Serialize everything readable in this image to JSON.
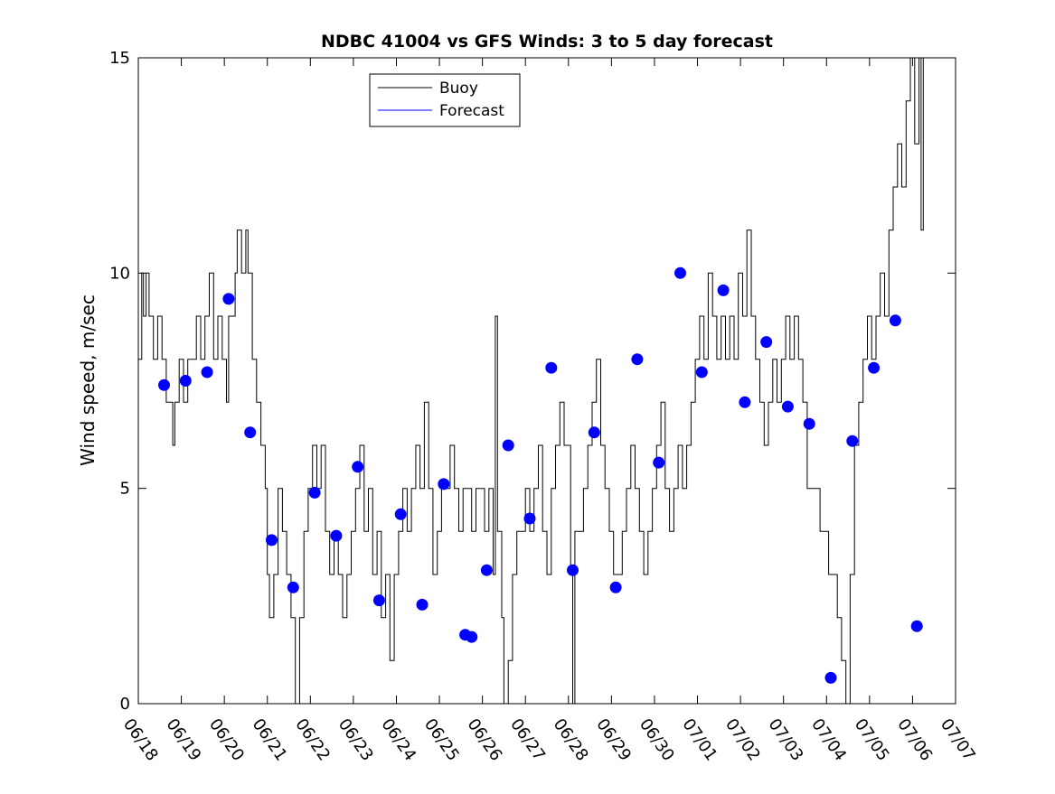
{
  "chart_data": {
    "type": "line",
    "title": "NDBC 41004 vs GFS Winds: 3 to 5 day forecast",
    "xlabel": "",
    "ylabel": "Wind speed, m/sec",
    "x_ticks": [
      "06/18",
      "06/19",
      "06/20",
      "06/21",
      "06/22",
      "06/23",
      "06/24",
      "06/25",
      "06/26",
      "06/27",
      "06/28",
      "06/29",
      "06/30",
      "07/01",
      "07/02",
      "07/03",
      "07/04",
      "07/05",
      "07/06",
      "07/07"
    ],
    "y_ticks": [
      "0",
      "5",
      "10",
      "15"
    ],
    "xlim_days": [
      0,
      19
    ],
    "ylim": [
      0,
      15
    ],
    "grid": false,
    "legend_position": "top-center",
    "series": [
      {
        "name": "Buoy",
        "color": "#000000",
        "values_by_day": [
          [
            0.0,
            8
          ],
          [
            0.08,
            10
          ],
          [
            0.12,
            9
          ],
          [
            0.18,
            10
          ],
          [
            0.25,
            9
          ],
          [
            0.35,
            8
          ],
          [
            0.45,
            9
          ],
          [
            0.55,
            8
          ],
          [
            0.65,
            7
          ],
          [
            0.75,
            7
          ],
          [
            0.8,
            6
          ],
          [
            0.85,
            7
          ],
          [
            0.95,
            8
          ],
          [
            1.05,
            7
          ],
          [
            1.15,
            8
          ],
          [
            1.25,
            8
          ],
          [
            1.35,
            9
          ],
          [
            1.45,
            8
          ],
          [
            1.55,
            9
          ],
          [
            1.65,
            10
          ],
          [
            1.75,
            8
          ],
          [
            1.85,
            9
          ],
          [
            1.95,
            8
          ],
          [
            2.05,
            7
          ],
          [
            2.1,
            9
          ],
          [
            2.15,
            9
          ],
          [
            2.25,
            10
          ],
          [
            2.3,
            11
          ],
          [
            2.4,
            10
          ],
          [
            2.5,
            11
          ],
          [
            2.55,
            10
          ],
          [
            2.65,
            8
          ],
          [
            2.75,
            7
          ],
          [
            2.85,
            6
          ],
          [
            2.95,
            5
          ],
          [
            3.0,
            3
          ],
          [
            3.05,
            2
          ],
          [
            3.15,
            3
          ],
          [
            3.25,
            5
          ],
          [
            3.35,
            4
          ],
          [
            3.45,
            3
          ],
          [
            3.55,
            2
          ],
          [
            3.65,
            0
          ],
          [
            3.75,
            2
          ],
          [
            3.85,
            4
          ],
          [
            3.95,
            5
          ],
          [
            4.05,
            6
          ],
          [
            4.15,
            5
          ],
          [
            4.25,
            6
          ],
          [
            4.35,
            4
          ],
          [
            4.45,
            3
          ],
          [
            4.55,
            4
          ],
          [
            4.65,
            3
          ],
          [
            4.75,
            2
          ],
          [
            4.85,
            3
          ],
          [
            4.95,
            4
          ],
          [
            5.05,
            5
          ],
          [
            5.15,
            6
          ],
          [
            5.25,
            4
          ],
          [
            5.35,
            5
          ],
          [
            5.45,
            3
          ],
          [
            5.55,
            4
          ],
          [
            5.65,
            2
          ],
          [
            5.75,
            3
          ],
          [
            5.85,
            1
          ],
          [
            5.95,
            3
          ],
          [
            6.05,
            4
          ],
          [
            6.15,
            5
          ],
          [
            6.25,
            4
          ],
          [
            6.35,
            5
          ],
          [
            6.45,
            6
          ],
          [
            6.55,
            5
          ],
          [
            6.65,
            7
          ],
          [
            6.75,
            5
          ],
          [
            6.85,
            3
          ],
          [
            6.95,
            4
          ],
          [
            7.05,
            5
          ],
          [
            7.15,
            5
          ],
          [
            7.25,
            6
          ],
          [
            7.35,
            5
          ],
          [
            7.45,
            4
          ],
          [
            7.55,
            5
          ],
          [
            7.65,
            5
          ],
          [
            7.75,
            4
          ],
          [
            7.85,
            5
          ],
          [
            7.95,
            5
          ],
          [
            8.05,
            4
          ],
          [
            8.15,
            5
          ],
          [
            8.25,
            3
          ],
          [
            8.3,
            9
          ],
          [
            8.35,
            4
          ],
          [
            8.45,
            2
          ],
          [
            8.5,
            0
          ],
          [
            8.6,
            1
          ],
          [
            8.7,
            3
          ],
          [
            8.8,
            4
          ],
          [
            8.9,
            4
          ],
          [
            9.0,
            5
          ],
          [
            9.1,
            4
          ],
          [
            9.2,
            5
          ],
          [
            9.3,
            6
          ],
          [
            9.4,
            4
          ],
          [
            9.5,
            3
          ],
          [
            9.6,
            5
          ],
          [
            9.7,
            6
          ],
          [
            9.8,
            7
          ],
          [
            9.9,
            6
          ],
          [
            10.0,
            6
          ],
          [
            10.05,
            3
          ],
          [
            10.1,
            0
          ],
          [
            10.15,
            4
          ],
          [
            10.25,
            4
          ],
          [
            10.35,
            5
          ],
          [
            10.45,
            6
          ],
          [
            10.55,
            7
          ],
          [
            10.65,
            8
          ],
          [
            10.75,
            6
          ],
          [
            10.85,
            5
          ],
          [
            10.95,
            4
          ],
          [
            11.05,
            3
          ],
          [
            11.15,
            3
          ],
          [
            11.25,
            4
          ],
          [
            11.35,
            5
          ],
          [
            11.45,
            6
          ],
          [
            11.55,
            5
          ],
          [
            11.65,
            4
          ],
          [
            11.75,
            3
          ],
          [
            11.85,
            4
          ],
          [
            11.95,
            5
          ],
          [
            12.05,
            6
          ],
          [
            12.15,
            7
          ],
          [
            12.25,
            5
          ],
          [
            12.35,
            4
          ],
          [
            12.45,
            5
          ],
          [
            12.55,
            6
          ],
          [
            12.65,
            5
          ],
          [
            12.75,
            6
          ],
          [
            12.85,
            7
          ],
          [
            12.95,
            8
          ],
          [
            13.05,
            9
          ],
          [
            13.15,
            8
          ],
          [
            13.25,
            10
          ],
          [
            13.35,
            9
          ],
          [
            13.45,
            8
          ],
          [
            13.55,
            9
          ],
          [
            13.65,
            8
          ],
          [
            13.75,
            9
          ],
          [
            13.85,
            8
          ],
          [
            13.95,
            10
          ],
          [
            14.05,
            9
          ],
          [
            14.15,
            11
          ],
          [
            14.25,
            9
          ],
          [
            14.35,
            8
          ],
          [
            14.45,
            7
          ],
          [
            14.55,
            6
          ],
          [
            14.65,
            7
          ],
          [
            14.75,
            8
          ],
          [
            14.85,
            7
          ],
          [
            14.95,
            8
          ],
          [
            15.05,
            9
          ],
          [
            15.15,
            8
          ],
          [
            15.25,
            9
          ],
          [
            15.35,
            8
          ],
          [
            15.45,
            7
          ],
          [
            15.55,
            5
          ],
          [
            15.65,
            5
          ],
          [
            15.75,
            5
          ],
          [
            15.85,
            4
          ],
          [
            15.95,
            4
          ],
          [
            16.05,
            3
          ],
          [
            16.15,
            3
          ],
          [
            16.25,
            2
          ],
          [
            16.35,
            1
          ],
          [
            16.45,
            0
          ],
          [
            16.55,
            3
          ],
          [
            16.65,
            6
          ],
          [
            16.75,
            7
          ],
          [
            16.85,
            8
          ],
          [
            16.95,
            9
          ],
          [
            17.05,
            8
          ],
          [
            17.15,
            9
          ],
          [
            17.25,
            10
          ],
          [
            17.35,
            9
          ],
          [
            17.45,
            11
          ],
          [
            17.55,
            12
          ],
          [
            17.65,
            13
          ],
          [
            17.75,
            12
          ],
          [
            17.85,
            14
          ],
          [
            17.95,
            15
          ],
          [
            18.05,
            13
          ],
          [
            18.15,
            15
          ],
          [
            18.2,
            11
          ],
          [
            18.25,
            15
          ]
        ]
      },
      {
        "name": "Forecast",
        "color": "#0000ff",
        "point_values_by_day": [
          [
            0.6,
            7.4
          ],
          [
            1.1,
            7.5
          ],
          [
            1.6,
            7.7
          ],
          [
            2.1,
            9.4
          ],
          [
            2.6,
            6.3
          ],
          [
            3.1,
            3.8
          ],
          [
            3.6,
            2.7
          ],
          [
            4.1,
            4.9
          ],
          [
            4.6,
            3.9
          ],
          [
            5.1,
            5.5
          ],
          [
            5.6,
            2.4
          ],
          [
            6.1,
            4.4
          ],
          [
            6.6,
            2.3
          ],
          [
            7.1,
            5.1
          ],
          [
            7.6,
            1.6
          ],
          [
            7.75,
            1.55
          ],
          [
            8.1,
            3.1
          ],
          [
            8.6,
            6.0
          ],
          [
            9.1,
            4.3
          ],
          [
            9.6,
            7.8
          ],
          [
            10.1,
            3.1
          ],
          [
            10.6,
            6.3
          ],
          [
            11.1,
            2.7
          ],
          [
            11.6,
            8.0
          ],
          [
            12.1,
            5.6
          ],
          [
            12.6,
            10.0
          ],
          [
            13.1,
            7.7
          ],
          [
            13.6,
            9.6
          ],
          [
            14.1,
            7.0
          ],
          [
            14.6,
            8.4
          ],
          [
            15.1,
            6.9
          ],
          [
            15.6,
            6.5
          ],
          [
            16.1,
            0.6
          ],
          [
            16.6,
            6.1
          ],
          [
            17.1,
            7.8
          ],
          [
            17.6,
            8.9
          ],
          [
            18.1,
            1.8
          ]
        ]
      }
    ]
  }
}
